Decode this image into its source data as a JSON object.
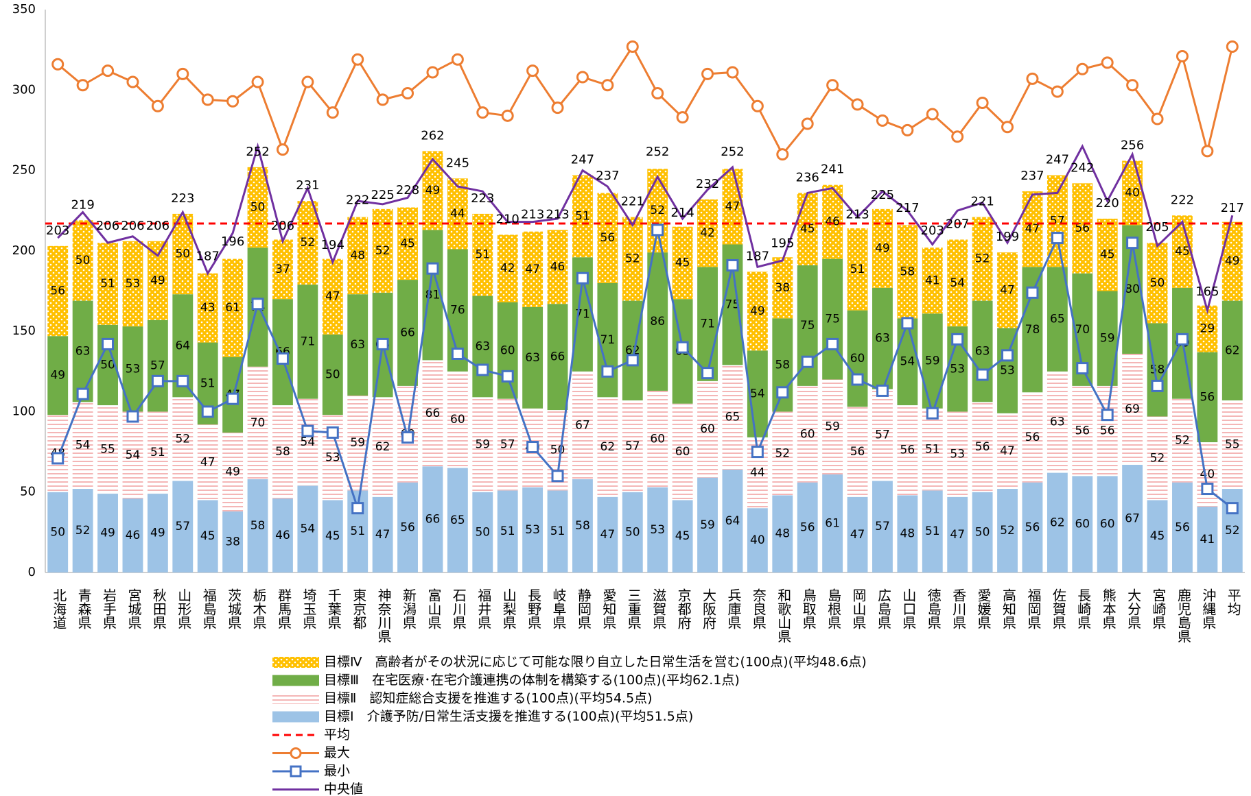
{
  "chart_data": {
    "type": "stacked_bar_line",
    "categories": [
      "北海道",
      "青森県",
      "岩手県",
      "宮城県",
      "秋田県",
      "山形県",
      "福島県",
      "茨城県",
      "栃木県",
      "群馬県",
      "埼玉県",
      "千葉県",
      "東京都",
      "神奈川県",
      "新潟県",
      "富山県",
      "石川県",
      "福井県",
      "山梨県",
      "長野県",
      "岐阜県",
      "静岡県",
      "愛知県",
      "三重県",
      "滋賀県",
      "京都府",
      "大阪府",
      "兵庫県",
      "奈良県",
      "和歌山県",
      "鳥取県",
      "島根県",
      "岡山県",
      "広島県",
      "山口県",
      "徳島県",
      "香川県",
      "愛媛県",
      "高知県",
      "福岡県",
      "佐賀県",
      "長崎県",
      "熊本県",
      "大分県",
      "宮崎県",
      "鹿児島県",
      "沖縄県",
      "平均"
    ],
    "series": [
      {
        "name": "目標Ⅳ　高齢者がその状況に応じて可能な限り自立した日常生活を営む(100点)(平均48.6点)",
        "color": "#ffc000",
        "pattern": "dots",
        "values": [
          56,
          50,
          51,
          53,
          49,
          50,
          43,
          61,
          50,
          37,
          52,
          47,
          48,
          52,
          45,
          49,
          44,
          51,
          42,
          47,
          46,
          51,
          56,
          52,
          52,
          45,
          42,
          47,
          49,
          38,
          45,
          46,
          51,
          49,
          58,
          41,
          54,
          52,
          47,
          47,
          57,
          56,
          45,
          40,
          50,
          45,
          29,
          49
        ]
      },
      {
        "name": "目標Ⅲ　在宅医療･在宅介護連携の体制を構築する(100点)(平均62.1点)",
        "color": "#70ad47",
        "pattern": "solid",
        "values": [
          49,
          63,
          50,
          53,
          57,
          64,
          51,
          47,
          74,
          66,
          71,
          50,
          63,
          65,
          66,
          81,
          76,
          63,
          60,
          63,
          66,
          71,
          71,
          62,
          86,
          65,
          71,
          75,
          54,
          58,
          75,
          75,
          60,
          63,
          54,
          59,
          53,
          63,
          53,
          78,
          65,
          70,
          59,
          80,
          58,
          69,
          56,
          62
        ]
      },
      {
        "name": "目標Ⅱ　認知症総合支援を推進する(100点)(平均54.5点)",
        "color": "#f4b6b6",
        "pattern": "stripes",
        "values": [
          48,
          54,
          55,
          54,
          51,
          52,
          47,
          49,
          70,
          58,
          54,
          53,
          59,
          62,
          60,
          66,
          60,
          59,
          57,
          49,
          50,
          67,
          62,
          57,
          60,
          60,
          60,
          65,
          44,
          52,
          60,
          59,
          56,
          57,
          56,
          51,
          53,
          56,
          47,
          56,
          63,
          56,
          56,
          69,
          52,
          52,
          40,
          55
        ]
      },
      {
        "name": "目標Ⅰ　介護予防/日常生活支援を推進する(100点)(平均51.5点)",
        "color": "#9dc3e6",
        "pattern": "solid",
        "values": [
          50,
          52,
          49,
          46,
          49,
          57,
          45,
          38,
          58,
          46,
          54,
          45,
          51,
          47,
          56,
          66,
          65,
          50,
          51,
          53,
          51,
          58,
          47,
          50,
          53,
          45,
          59,
          64,
          40,
          48,
          56,
          61,
          47,
          57,
          48,
          51,
          47,
          50,
          52,
          56,
          62,
          60,
          60,
          67,
          45,
          56,
          41,
          52
        ]
      }
    ],
    "totals": [
      203,
      219,
      206,
      206,
      206,
      223,
      187,
      196,
      252,
      206,
      231,
      194,
      222,
      225,
      228,
      262,
      245,
      223,
      210,
      213,
      213,
      247,
      237,
      221,
      252,
      214,
      232,
      252,
      187,
      195,
      236,
      241,
      213,
      225,
      217,
      203,
      207,
      221,
      199,
      237,
      247,
      242,
      220,
      256,
      205,
      222,
      165,
      217
    ],
    "lines": [
      {
        "name": "平均",
        "color": "#ff0000",
        "dash": true,
        "value": 217
      },
      {
        "name": "最大",
        "color": "#ed7d31",
        "marker": "circle",
        "values": [
          316,
          303,
          312,
          305,
          290,
          310,
          294,
          293,
          305,
          263,
          305,
          286,
          319,
          294,
          298,
          311,
          319,
          286,
          284,
          312,
          289,
          308,
          303,
          327,
          298,
          283,
          310,
          311,
          290,
          260,
          279,
          303,
          291,
          281,
          275,
          285,
          271,
          292,
          277,
          307,
          299,
          313,
          317,
          303,
          282,
          321,
          262,
          327
        ]
      },
      {
        "name": "最小",
        "color": "#4472c4",
        "marker": "square",
        "values": [
          71,
          111,
          142,
          97,
          119,
          119,
          100,
          108,
          167,
          133,
          88,
          87,
          40,
          142,
          84,
          189,
          136,
          126,
          122,
          78,
          60,
          183,
          125,
          132,
          213,
          140,
          124,
          191,
          75,
          112,
          131,
          142,
          120,
          113,
          155,
          99,
          145,
          123,
          135,
          174,
          208,
          127,
          98,
          205,
          116,
          145,
          52,
          40
        ]
      },
      {
        "name": "中央値",
        "color": "#7030a0",
        "values": [
          208,
          224,
          205,
          209,
          197,
          224,
          186,
          211,
          265,
          206,
          239,
          193,
          231,
          229,
          233,
          257,
          240,
          237,
          218,
          218,
          220,
          250,
          240,
          216,
          246,
          220,
          238,
          252,
          190,
          194,
          236,
          239,
          221,
          237,
          225,
          204,
          225,
          230,
          205,
          235,
          236,
          265,
          231,
          260,
          203,
          218,
          163,
          222
        ]
      }
    ],
    "ylim": [
      0,
      350
    ],
    "yticks": [
      0,
      50,
      100,
      150,
      200,
      250,
      300,
      350
    ],
    "grid": false
  }
}
